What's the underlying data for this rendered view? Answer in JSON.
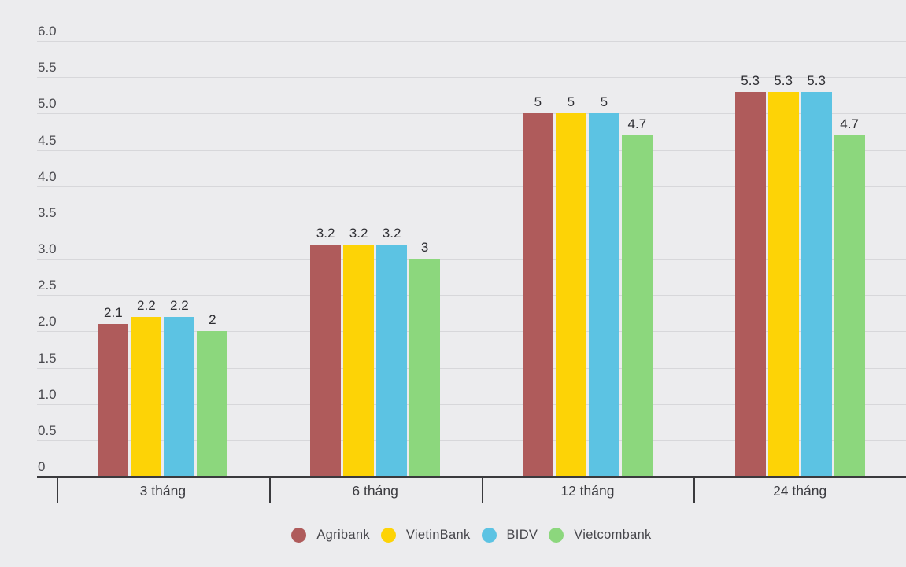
{
  "chart_data": {
    "type": "bar",
    "title": "",
    "categories": [
      "3 tháng",
      "6 tháng",
      "12 tháng",
      "24 tháng"
    ],
    "series": [
      {
        "name": "Agribank",
        "color": "#af5b5b",
        "values": [
          2.1,
          3.2,
          5,
          5.3
        ]
      },
      {
        "name": "VietinBank",
        "color": "#fdd306",
        "values": [
          2.2,
          3.2,
          5,
          5.3
        ]
      },
      {
        "name": "BIDV",
        "color": "#5cc3e3",
        "values": [
          2.2,
          3.2,
          5,
          5.3
        ]
      },
      {
        "name": "Vietcombank",
        "color": "#8cd77d",
        "values": [
          2,
          3,
          4.7,
          4.7
        ]
      }
    ],
    "y_axis": {
      "min": 0,
      "max": 6,
      "step": 0.5,
      "tick_labels": [
        "0",
        "0.5",
        "1.0",
        "1.5",
        "2.0",
        "2.5",
        "3.0",
        "3.5",
        "4.0",
        "4.5",
        "5.0",
        "5.5",
        "6.0"
      ]
    },
    "grid": true,
    "legend_position": "bottom",
    "value_labels_shown": true
  },
  "colors": {
    "background": "#ececee",
    "gridline": "#d7d7da",
    "axis": "#3a3a3d",
    "y_tick_text": "#4a4a4f",
    "category_text": "#3c3c41",
    "value_text": "#2e2e33",
    "legend_text": "#47474c"
  }
}
